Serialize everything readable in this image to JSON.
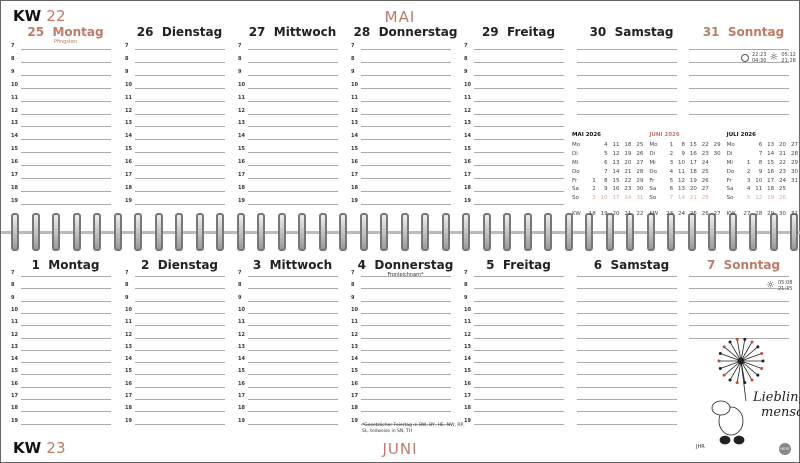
{
  "top": {
    "kw_label": "KW",
    "kw": "22",
    "month": "MAI",
    "days": [
      {
        "date": "25",
        "name": "Montag",
        "red": true,
        "holiday": "Pfingsten"
      },
      {
        "date": "26",
        "name": "Dienstag"
      },
      {
        "date": "27",
        "name": "Mittwoch"
      },
      {
        "date": "28",
        "name": "Donnerstag"
      },
      {
        "date": "29",
        "name": "Freitag"
      },
      {
        "date": "30",
        "name": "Samstag"
      },
      {
        "date": "31",
        "name": "Sonntag",
        "red": true
      }
    ],
    "moon": {
      "icon": "full-moon-icon",
      "rise": "22:23",
      "set": "04:30"
    },
    "sun": {
      "icon": "sun-icon",
      "rise": "05:12",
      "set": "21:28"
    }
  },
  "bottom": {
    "kw_label": "KW",
    "kw": "23",
    "month": "JUNI",
    "days": [
      {
        "date": "1",
        "name": "Montag"
      },
      {
        "date": "2",
        "name": "Dienstag"
      },
      {
        "date": "3",
        "name": "Mittwoch"
      },
      {
        "date": "4",
        "name": "Donnerstag",
        "holiday": "Fronleichnam*",
        "mark": "lightning-icon"
      },
      {
        "date": "5",
        "name": "Freitag"
      },
      {
        "date": "6",
        "name": "Samstag"
      },
      {
        "date": "7",
        "name": "Sonntag",
        "red": true
      }
    ],
    "sun": {
      "icon": "sun-icon",
      "rise": "05:08",
      "set": "21:35"
    },
    "footnote": "*Gesetzlicher Feiertag in BW, BY, HE, NW, RP, SL, teilweise in SN, TH",
    "illustration_text": "Lieblings-mensch",
    "signature": "JHR",
    "publisher": "HEYE"
  },
  "hours": [
    "7",
    "8",
    "9",
    "10",
    "11",
    "12",
    "13",
    "14",
    "15",
    "16",
    "17",
    "18",
    "19"
  ],
  "weekdays": [
    "Mo",
    "Di",
    "Mi",
    "Do",
    "Fr",
    "Sa",
    "So"
  ],
  "mini_calendars": [
    {
      "title": "MAI 2026",
      "rows": [
        [
          "",
          "4",
          "11",
          "18",
          "25"
        ],
        [
          "",
          "5",
          "12",
          "19",
          "26"
        ],
        [
          "",
          "6",
          "13",
          "20",
          "27"
        ],
        [
          "",
          "7",
          "14",
          "21",
          "28"
        ],
        [
          "1",
          "8",
          "15",
          "22",
          "29"
        ],
        [
          "2",
          "9",
          "16",
          "23",
          "30"
        ],
        [
          "3",
          "10",
          "17",
          "24",
          "31"
        ]
      ],
      "kw": [
        "18",
        "19",
        "20",
        "21",
        "22"
      ]
    },
    {
      "title": "JUNI 2026",
      "red": true,
      "rows": [
        [
          "1",
          "8",
          "15",
          "22",
          "29"
        ],
        [
          "2",
          "9",
          "16",
          "23",
          "30"
        ],
        [
          "3",
          "10",
          "17",
          "24",
          ""
        ],
        [
          "4",
          "11",
          "18",
          "25",
          ""
        ],
        [
          "5",
          "12",
          "19",
          "26",
          ""
        ],
        [
          "6",
          "13",
          "20",
          "27",
          ""
        ],
        [
          "7",
          "14",
          "21",
          "28",
          ""
        ]
      ],
      "kw": [
        "23",
        "24",
        "25",
        "26",
        "27"
      ]
    },
    {
      "title": "JULI 2026",
      "rows": [
        [
          "",
          "6",
          "13",
          "20",
          "27"
        ],
        [
          "",
          "7",
          "14",
          "21",
          "28"
        ],
        [
          "1",
          "8",
          "15",
          "22",
          "29"
        ],
        [
          "2",
          "9",
          "16",
          "23",
          "30"
        ],
        [
          "3",
          "10",
          "17",
          "24",
          "31"
        ],
        [
          "4",
          "11",
          "18",
          "25",
          ""
        ],
        [
          "5",
          "12",
          "19",
          "26",
          ""
        ]
      ],
      "kw": [
        "27",
        "28",
        "29",
        "30",
        "31"
      ]
    }
  ],
  "kw_label_small": "KW",
  "colors": {
    "accent": "#c07a68",
    "line": "#aaaaaa"
  }
}
